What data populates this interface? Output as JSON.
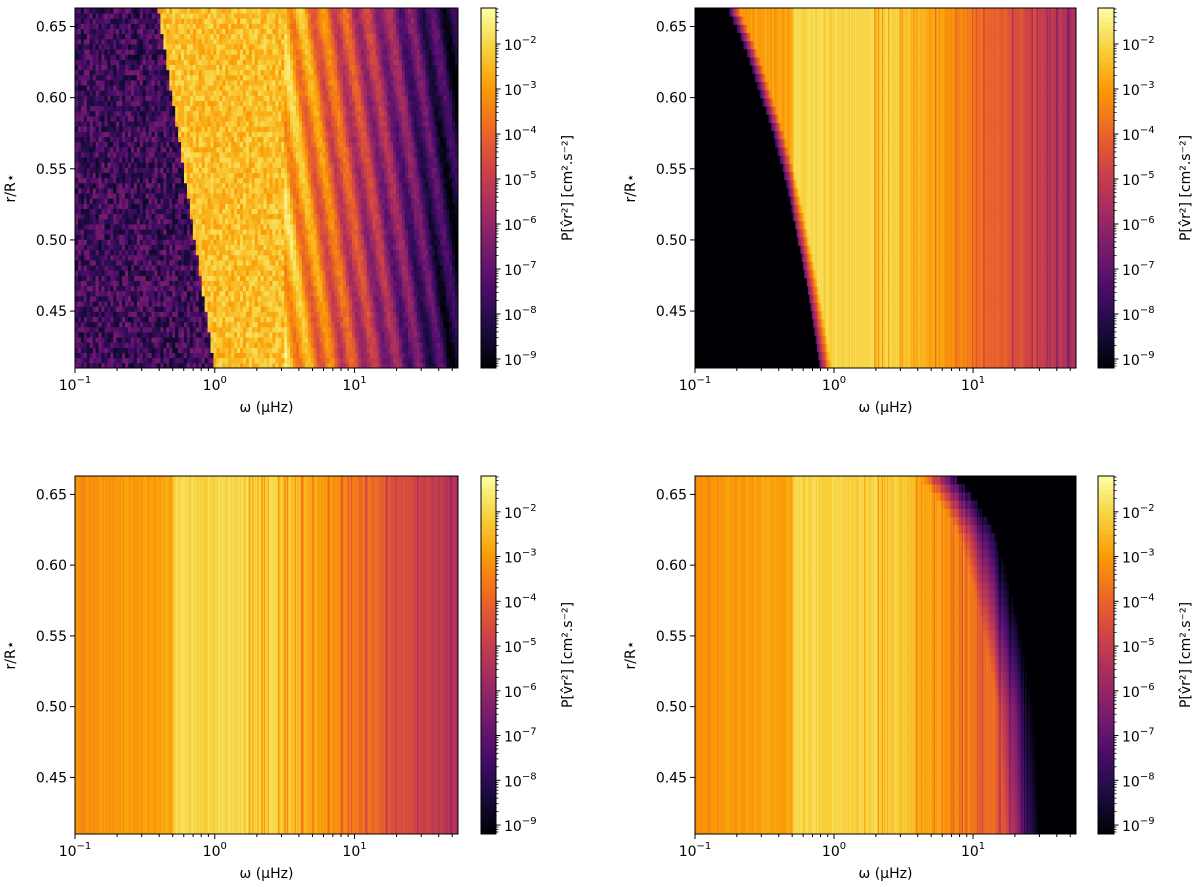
{
  "figure": {
    "colormap": "inferno",
    "colors": {
      "cmap_stops": [
        "#000004",
        "#1b0c41",
        "#4a0c6b",
        "#781c6d",
        "#a52c60",
        "#cf4446",
        "#ed6925",
        "#fb9b06",
        "#f7d13d",
        "#fcffa4"
      ]
    }
  },
  "chart_data": [
    {
      "type": "heatmap",
      "panel": "top-left",
      "title": "",
      "xlabel": "ω (μHz)",
      "ylabel": "r/R⋆",
      "x_scale": "log",
      "xlim": [
        0.1,
        55
      ],
      "ylim": [
        0.41,
        0.663
      ],
      "x_ticks": [
        {
          "base": "10",
          "exp": "−1"
        },
        {
          "base": "10",
          "exp": "0"
        },
        {
          "base": "10",
          "exp": "1"
        }
      ],
      "y_ticks": [
        "0.45",
        "0.50",
        "0.55",
        "0.60",
        "0.65"
      ],
      "y_tick_values": [
        0.45,
        0.5,
        0.55,
        0.6,
        0.65
      ],
      "colorbar": {
        "label": "P[v̂r²] [cm².s⁻²]",
        "scale": "log",
        "range_log10": [
          -9.2,
          -1.2
        ],
        "ticks": [
          {
            "base": "10",
            "exp": "−2",
            "v": -2
          },
          {
            "base": "10",
            "exp": "−3",
            "v": -3
          },
          {
            "base": "10",
            "exp": "−4",
            "v": -4
          },
          {
            "base": "10",
            "exp": "−5",
            "v": -5
          },
          {
            "base": "10",
            "exp": "−6",
            "v": -6
          },
          {
            "base": "10",
            "exp": "−7",
            "v": -7
          },
          {
            "base": "10",
            "exp": "−8",
            "v": -8
          },
          {
            "base": "10",
            "exp": "−9",
            "v": -9
          }
        ]
      },
      "model": "noisy"
    },
    {
      "type": "heatmap",
      "panel": "top-right",
      "title": "",
      "xlabel": "ω (μHz)",
      "ylabel": "r/R⋆",
      "x_scale": "log",
      "xlim": [
        0.1,
        55
      ],
      "ylim": [
        0.41,
        0.663
      ],
      "x_ticks": [
        {
          "base": "10",
          "exp": "−1"
        },
        {
          "base": "10",
          "exp": "0"
        },
        {
          "base": "10",
          "exp": "1"
        }
      ],
      "y_ticks": [
        "0.45",
        "0.50",
        "0.55",
        "0.60",
        "0.65"
      ],
      "y_tick_values": [
        0.45,
        0.5,
        0.55,
        0.6,
        0.65
      ],
      "colorbar": {
        "label": "P[v̂r²] [cm².s⁻²]",
        "scale": "log",
        "range_log10": [
          -9.2,
          -1.2
        ],
        "ticks": [
          {
            "base": "10",
            "exp": "−2",
            "v": -2
          },
          {
            "base": "10",
            "exp": "−3",
            "v": -3
          },
          {
            "base": "10",
            "exp": "−4",
            "v": -4
          },
          {
            "base": "10",
            "exp": "−5",
            "v": -5
          },
          {
            "base": "10",
            "exp": "−6",
            "v": -6
          },
          {
            "base": "10",
            "exp": "−7",
            "v": -7
          },
          {
            "base": "10",
            "exp": "−8",
            "v": -8
          },
          {
            "base": "10",
            "exp": "−9",
            "v": -9
          }
        ]
      },
      "model": "low-cutoff",
      "cutoff_omega_at_r": [
        [
          0.41,
          0.8
        ],
        [
          0.5,
          0.55
        ],
        [
          0.6,
          0.3
        ],
        [
          0.663,
          0.17
        ]
      ]
    },
    {
      "type": "heatmap",
      "panel": "bottom-left",
      "title": "",
      "xlabel": "ω (μHz)",
      "ylabel": "r/R⋆",
      "x_scale": "log",
      "xlim": [
        0.1,
        55
      ],
      "ylim": [
        0.41,
        0.663
      ],
      "x_ticks": [
        {
          "base": "10",
          "exp": "−1"
        },
        {
          "base": "10",
          "exp": "0"
        },
        {
          "base": "10",
          "exp": "1"
        }
      ],
      "y_ticks": [
        "0.45",
        "0.50",
        "0.55",
        "0.60",
        "0.65"
      ],
      "y_tick_values": [
        0.45,
        0.5,
        0.55,
        0.6,
        0.65
      ],
      "colorbar": {
        "label": "P[v̂r²] [cm².s⁻²]",
        "scale": "log",
        "range_log10": [
          -9.2,
          -1.2
        ],
        "ticks": [
          {
            "base": "10",
            "exp": "−2",
            "v": -2
          },
          {
            "base": "10",
            "exp": "−3",
            "v": -3
          },
          {
            "base": "10",
            "exp": "−4",
            "v": -4
          },
          {
            "base": "10",
            "exp": "−5",
            "v": -5
          },
          {
            "base": "10",
            "exp": "−6",
            "v": -6
          },
          {
            "base": "10",
            "exp": "−7",
            "v": -7
          },
          {
            "base": "10",
            "exp": "−8",
            "v": -8
          },
          {
            "base": "10",
            "exp": "−9",
            "v": -9
          }
        ]
      },
      "model": "uniform"
    },
    {
      "type": "heatmap",
      "panel": "bottom-right",
      "title": "",
      "xlabel": "ω (μHz)",
      "ylabel": "r/R⋆",
      "x_scale": "log",
      "xlim": [
        0.1,
        55
      ],
      "ylim": [
        0.41,
        0.663
      ],
      "x_ticks": [
        {
          "base": "10",
          "exp": "−1"
        },
        {
          "base": "10",
          "exp": "0"
        },
        {
          "base": "10",
          "exp": "1"
        }
      ],
      "y_ticks": [
        "0.45",
        "0.50",
        "0.55",
        "0.60",
        "0.65"
      ],
      "y_tick_values": [
        0.45,
        0.5,
        0.55,
        0.6,
        0.65
      ],
      "colorbar": {
        "label": "P[v̂r²] [cm².s⁻²]",
        "scale": "log",
        "range_log10": [
          -9.2,
          -1.2
        ],
        "ticks": [
          {
            "base": "10",
            "exp": "−2",
            "v": -2
          },
          {
            "base": "10",
            "exp": "−3",
            "v": -3
          },
          {
            "base": "10",
            "exp": "−4",
            "v": -4
          },
          {
            "base": "10",
            "exp": "−5",
            "v": -5
          },
          {
            "base": "10",
            "exp": "−6",
            "v": -6
          },
          {
            "base": "10",
            "exp": "−7",
            "v": -7
          },
          {
            "base": "10",
            "exp": "−8",
            "v": -8
          },
          {
            "base": "10",
            "exp": "−9",
            "v": -9
          }
        ]
      },
      "model": "high-cutoff",
      "cutoff_omega_at_r": [
        [
          0.663,
          4
        ],
        [
          0.62,
          8
        ],
        [
          0.55,
          12
        ],
        [
          0.5,
          15
        ],
        [
          0.41,
          17
        ]
      ]
    }
  ]
}
